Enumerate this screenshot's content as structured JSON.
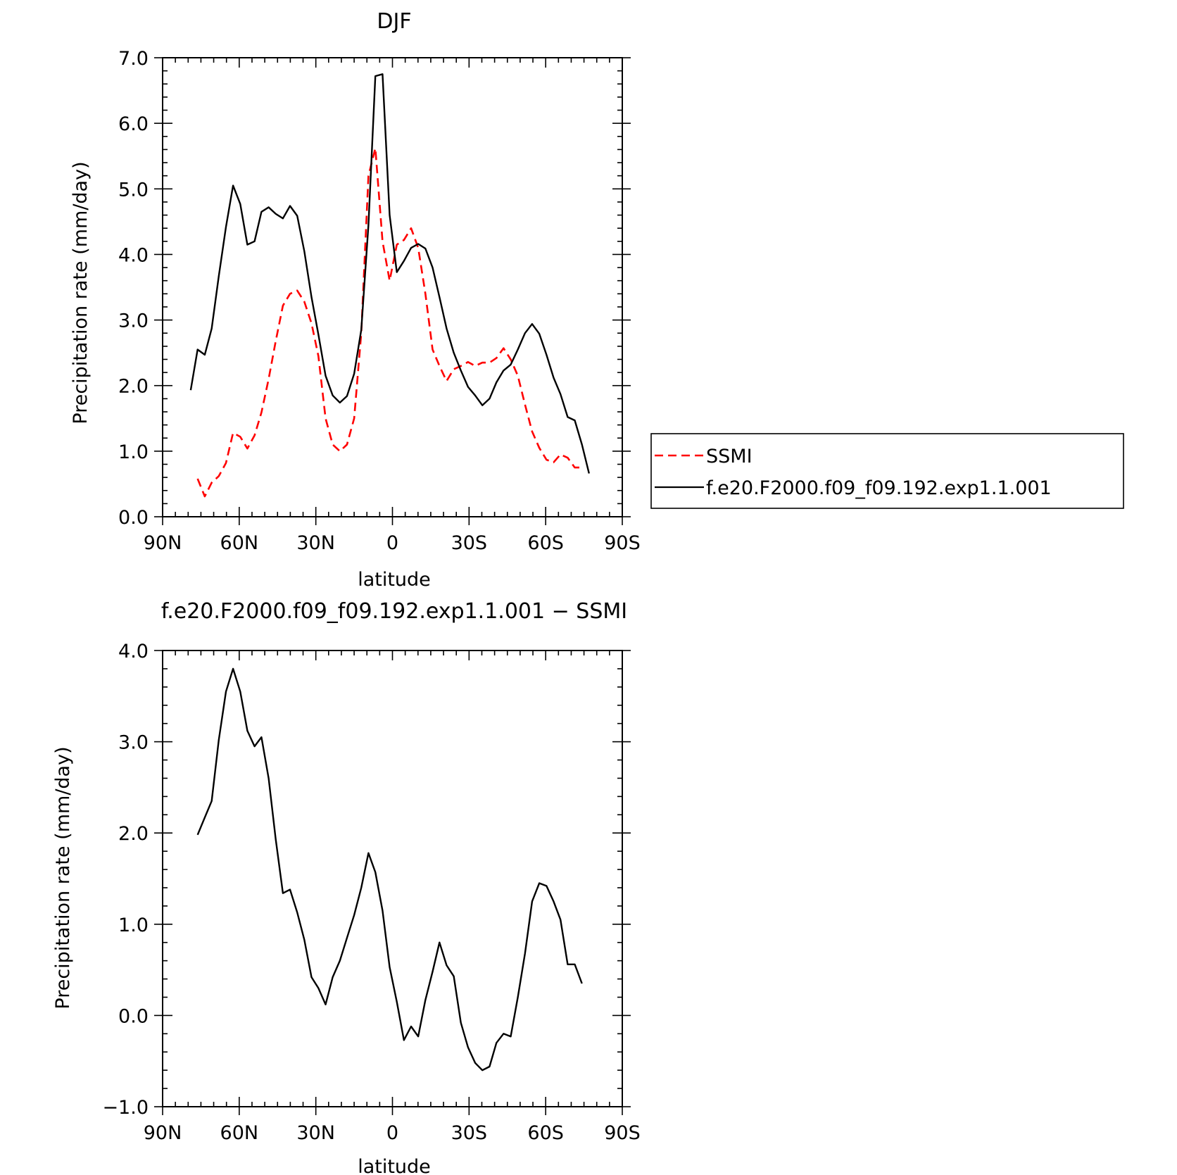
{
  "chart_data": [
    {
      "type": "line",
      "title": "DJF",
      "xlabel": "latitude",
      "ylabel": "Precipitation rate (mm/day)",
      "xlim": [
        90,
        -90
      ],
      "ylim": [
        0,
        7
      ],
      "xticks": [
        90,
        60,
        30,
        0,
        -30,
        -60,
        -90
      ],
      "xtick_labels": [
        "90N",
        "60N",
        "30N",
        "0",
        "30S",
        "60S",
        "90S"
      ],
      "yticks": [
        0,
        1,
        2,
        3,
        4,
        5,
        6,
        7
      ],
      "ytick_labels": [
        "0.0",
        "1.0",
        "2.0",
        "3.0",
        "4.0",
        "5.0",
        "6.0",
        "7.0"
      ],
      "legend_position": "right",
      "series": [
        {
          "name": "SSMI",
          "color": "#ff0000",
          "style": "dashed",
          "x": [
            76.3,
            73.5,
            70.8,
            68.0,
            65.2,
            62.4,
            59.6,
            56.8,
            54.0,
            51.3,
            48.5,
            45.7,
            42.9,
            40.1,
            37.3,
            34.5,
            31.7,
            29.0,
            26.2,
            23.4,
            20.6,
            17.8,
            15.0,
            12.2,
            9.4,
            6.7,
            3.9,
            1.1,
            -1.7,
            -4.5,
            -7.3,
            -10.1,
            -12.9,
            -15.7,
            -18.4,
            -21.2,
            -24.0,
            -26.8,
            -29.6,
            -32.4,
            -35.2,
            -38.0,
            -40.7,
            -43.5,
            -46.3,
            -49.1,
            -51.9,
            -54.7,
            -57.5,
            -60.3,
            -63.1,
            -65.8,
            -68.6,
            -71.4,
            -74.2
          ],
          "y": [
            0.58,
            0.31,
            0.52,
            0.62,
            0.82,
            1.28,
            1.22,
            1.04,
            1.24,
            1.59,
            2.1,
            2.68,
            3.22,
            3.4,
            3.45,
            3.28,
            2.95,
            2.45,
            1.5,
            1.1,
            1.0,
            1.1,
            1.5,
            2.8,
            5.2,
            5.62,
            4.2,
            3.6,
            4.15,
            4.22,
            4.4,
            4.1,
            3.4,
            2.55,
            2.3,
            2.07,
            2.25,
            2.3,
            2.36,
            2.3,
            2.35,
            2.35,
            2.42,
            2.57,
            2.4,
            2.15,
            1.71,
            1.3,
            1.05,
            0.87,
            0.83,
            0.95,
            0.9,
            0.75,
            0.75
          ]
        },
        {
          "name": "f.e20.F2000.f09_f09.192.exp1.1.001",
          "color": "#000000",
          "style": "solid",
          "x": [
            79.0,
            76.3,
            73.5,
            70.8,
            68.0,
            65.2,
            62.4,
            59.6,
            56.8,
            54.0,
            51.3,
            48.5,
            45.7,
            42.9,
            40.1,
            37.3,
            34.5,
            31.7,
            29.0,
            26.2,
            23.4,
            20.6,
            17.8,
            15.0,
            12.2,
            9.4,
            6.7,
            3.9,
            1.1,
            -1.7,
            -4.5,
            -7.3,
            -10.1,
            -12.9,
            -15.7,
            -18.4,
            -21.2,
            -24.0,
            -26.8,
            -29.6,
            -32.4,
            -35.2,
            -38.0,
            -40.7,
            -43.5,
            -46.3,
            -49.1,
            -51.9,
            -54.7,
            -57.5,
            -60.3,
            -63.1,
            -65.8,
            -68.6,
            -71.4,
            -74.2,
            -77.0
          ],
          "y": [
            1.93,
            2.55,
            2.47,
            2.87,
            3.67,
            4.42,
            5.05,
            4.77,
            4.15,
            4.2,
            4.65,
            4.72,
            4.62,
            4.55,
            4.74,
            4.59,
            4.05,
            3.35,
            2.78,
            2.15,
            1.85,
            1.74,
            1.84,
            2.18,
            2.85,
            4.45,
            6.72,
            6.75,
            4.6,
            3.73,
            3.9,
            4.1,
            4.16,
            4.09,
            3.8,
            3.35,
            2.87,
            2.5,
            2.23,
            1.98,
            1.85,
            1.7,
            1.8,
            2.05,
            2.23,
            2.32,
            2.55,
            2.8,
            2.94,
            2.79,
            2.47,
            2.12,
            1.87,
            1.52,
            1.47,
            1.1,
            0.66
          ]
        }
      ]
    },
    {
      "type": "line",
      "title": "f.e20.F2000.f09_f09.192.exp1.1.001 − SSMI",
      "xlabel": "latitude",
      "ylabel": "Precipitation rate (mm/day)",
      "xlim": [
        90,
        -90
      ],
      "ylim": [
        -1,
        4
      ],
      "xticks": [
        90,
        60,
        30,
        0,
        -30,
        -60,
        -90
      ],
      "xtick_labels": [
        "90N",
        "60N",
        "30N",
        "0",
        "30S",
        "60S",
        "90S"
      ],
      "yticks": [
        -1,
        0,
        1,
        2,
        3,
        4
      ],
      "ytick_labels": [
        "−1.0",
        "0.0",
        "1.0",
        "2.0",
        "3.0",
        "4.0"
      ],
      "series": [
        {
          "color": "#000000",
          "style": "solid",
          "x": [
            76.3,
            73.5,
            70.8,
            68.0,
            65.2,
            62.4,
            59.6,
            56.8,
            54.0,
            51.3,
            48.5,
            45.7,
            42.9,
            40.1,
            37.3,
            34.5,
            31.7,
            29.0,
            26.2,
            23.4,
            20.6,
            17.8,
            15.0,
            12.2,
            9.4,
            6.7,
            3.9,
            1.1,
            -1.7,
            -4.5,
            -7.3,
            -10.1,
            -12.9,
            -15.7,
            -18.4,
            -21.2,
            -24.0,
            -26.8,
            -29.6,
            -32.4,
            -35.2,
            -38.0,
            -40.7,
            -43.5,
            -46.3,
            -49.1,
            -51.9,
            -54.7,
            -57.5,
            -60.3,
            -63.1,
            -65.8,
            -68.6,
            -71.4,
            -74.2
          ],
          "y": [
            1.98,
            2.17,
            2.35,
            3.02,
            3.55,
            3.8,
            3.55,
            3.12,
            2.95,
            3.05,
            2.6,
            1.93,
            1.34,
            1.38,
            1.13,
            0.83,
            0.42,
            0.3,
            0.12,
            0.42,
            0.6,
            0.85,
            1.1,
            1.4,
            1.78,
            1.57,
            1.15,
            0.53,
            0.15,
            -0.27,
            -0.12,
            -0.23,
            0.17,
            0.48,
            0.8,
            0.55,
            0.43,
            -0.08,
            -0.35,
            -0.52,
            -0.6,
            -0.56,
            -0.3,
            -0.2,
            -0.23,
            0.2,
            0.68,
            1.25,
            1.45,
            1.42,
            1.25,
            1.05,
            0.56,
            0.56,
            0.35
          ]
        }
      ]
    }
  ]
}
